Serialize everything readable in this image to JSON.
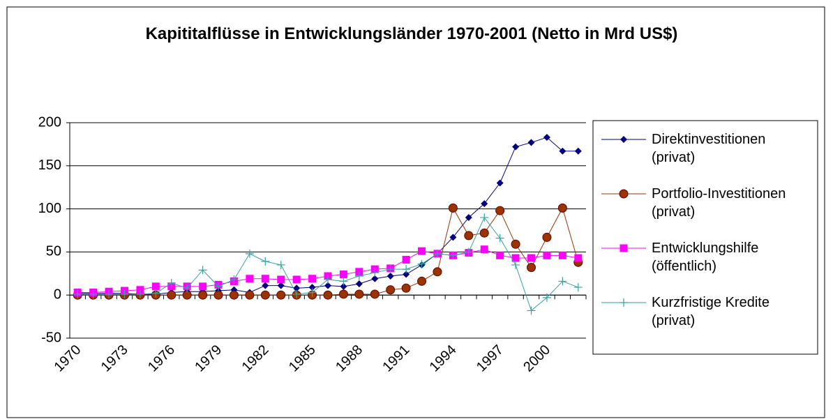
{
  "chart_data": {
    "type": "line",
    "title": "Kapititalflüsse in Entwicklungsländer 1970-2001 (Netto in Mrd US$)",
    "categories": [
      "1970",
      null,
      null,
      "1973",
      null,
      null,
      "1976",
      null,
      null,
      "1979",
      null,
      null,
      "1982",
      null,
      null,
      "1985",
      null,
      null,
      "1988",
      null,
      null,
      "1991",
      null,
      null,
      "1994",
      null,
      null,
      "1997",
      null,
      null,
      "2000",
      null,
      null
    ],
    "ylim": [
      -50,
      200
    ],
    "yticks": [
      -50,
      0,
      50,
      100,
      150,
      200
    ],
    "grid": true,
    "legend": "right",
    "series": [
      {
        "name": "Direktinvestitionen\n(privat)",
        "color": "#000080",
        "marker": "diamond",
        "values": [
          2,
          2,
          2,
          2,
          1,
          1,
          3,
          4,
          4,
          5,
          6,
          3,
          11,
          11,
          8,
          9,
          11,
          10,
          13,
          19,
          22,
          24,
          35,
          48,
          67,
          90,
          106,
          130,
          172,
          177,
          183,
          167,
          167
        ]
      },
      {
        "name": "Portfolio-Investitionen\n(privat)",
        "color": "#993300",
        "marker": "circle",
        "values": [
          0,
          0,
          0,
          0,
          0,
          0,
          0,
          0,
          0,
          0,
          0,
          0,
          0,
          0,
          0,
          0,
          0,
          1,
          1,
          1,
          6,
          8,
          16,
          27,
          101,
          69,
          72,
          98,
          59,
          32,
          67,
          101,
          38
        ]
      },
      {
        "name": "Entwicklungshilfe\n(öffentlich)",
        "color": "#ff00ff",
        "marker": "square",
        "values": [
          3,
          3,
          4,
          5,
          6,
          10,
          10,
          10,
          10,
          12,
          16,
          19,
          19,
          18,
          18,
          19,
          22,
          24,
          27,
          30,
          31,
          41,
          51,
          48,
          46,
          49,
          53,
          46,
          43,
          43,
          46,
          46,
          43
        ]
      },
      {
        "name": "Kurzfristige Kredite\n(privat)",
        "color": "#33a3a3",
        "marker": "plus",
        "values": [
          1,
          1,
          1,
          1,
          1,
          2,
          14,
          8,
          29,
          10,
          18,
          48,
          39,
          35,
          1,
          3,
          18,
          16,
          22,
          26,
          30,
          30,
          36,
          48,
          46,
          50,
          90,
          66,
          35,
          -18,
          -3,
          16,
          9
        ]
      }
    ]
  }
}
